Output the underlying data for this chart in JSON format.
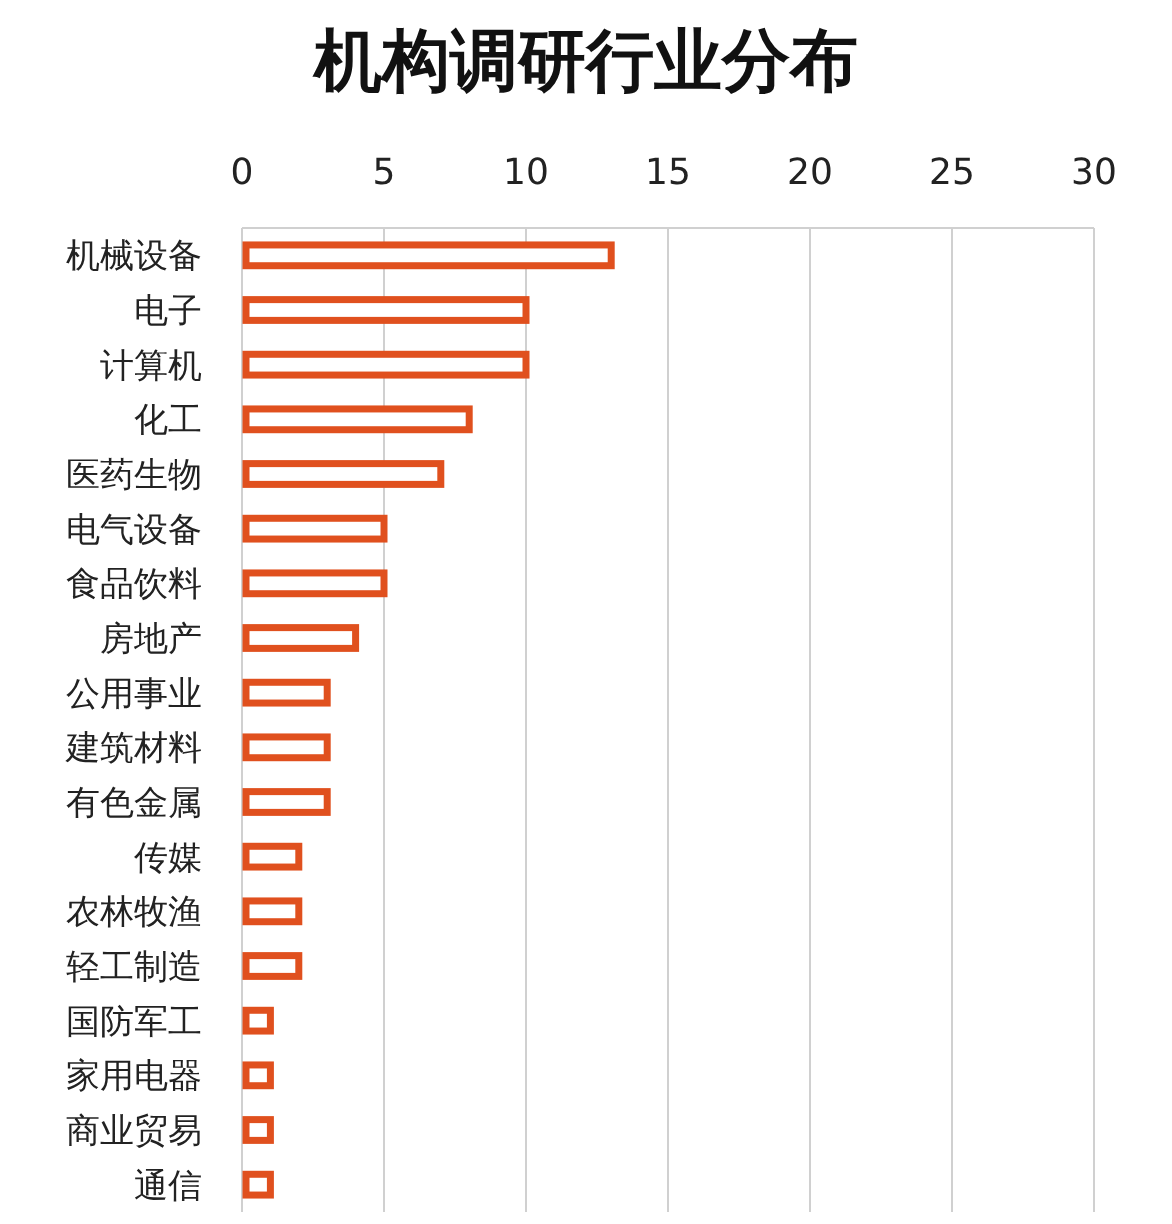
{
  "chart_data": {
    "type": "bar",
    "orientation": "horizontal",
    "title": "机构调研行业分布",
    "categories": [
      "机械设备",
      "电子",
      "计算机",
      "化工",
      "医药生物",
      "电气设备",
      "食品饮料",
      "房地产",
      "公用事业",
      "建筑材料",
      "有色金属",
      "传媒",
      "农林牧渔",
      "轻工制造",
      "国防军工",
      "家用电器",
      "商业贸易",
      "通信"
    ],
    "values": [
      13,
      10,
      10,
      8,
      7,
      5,
      5,
      4,
      3,
      3,
      3,
      2,
      2,
      2,
      1,
      1,
      1,
      1
    ],
    "color": "#e0501e",
    "xlim": [
      0,
      30
    ],
    "xticks": [
      0,
      5,
      10,
      15,
      20,
      25,
      30
    ],
    "grid": "x"
  }
}
